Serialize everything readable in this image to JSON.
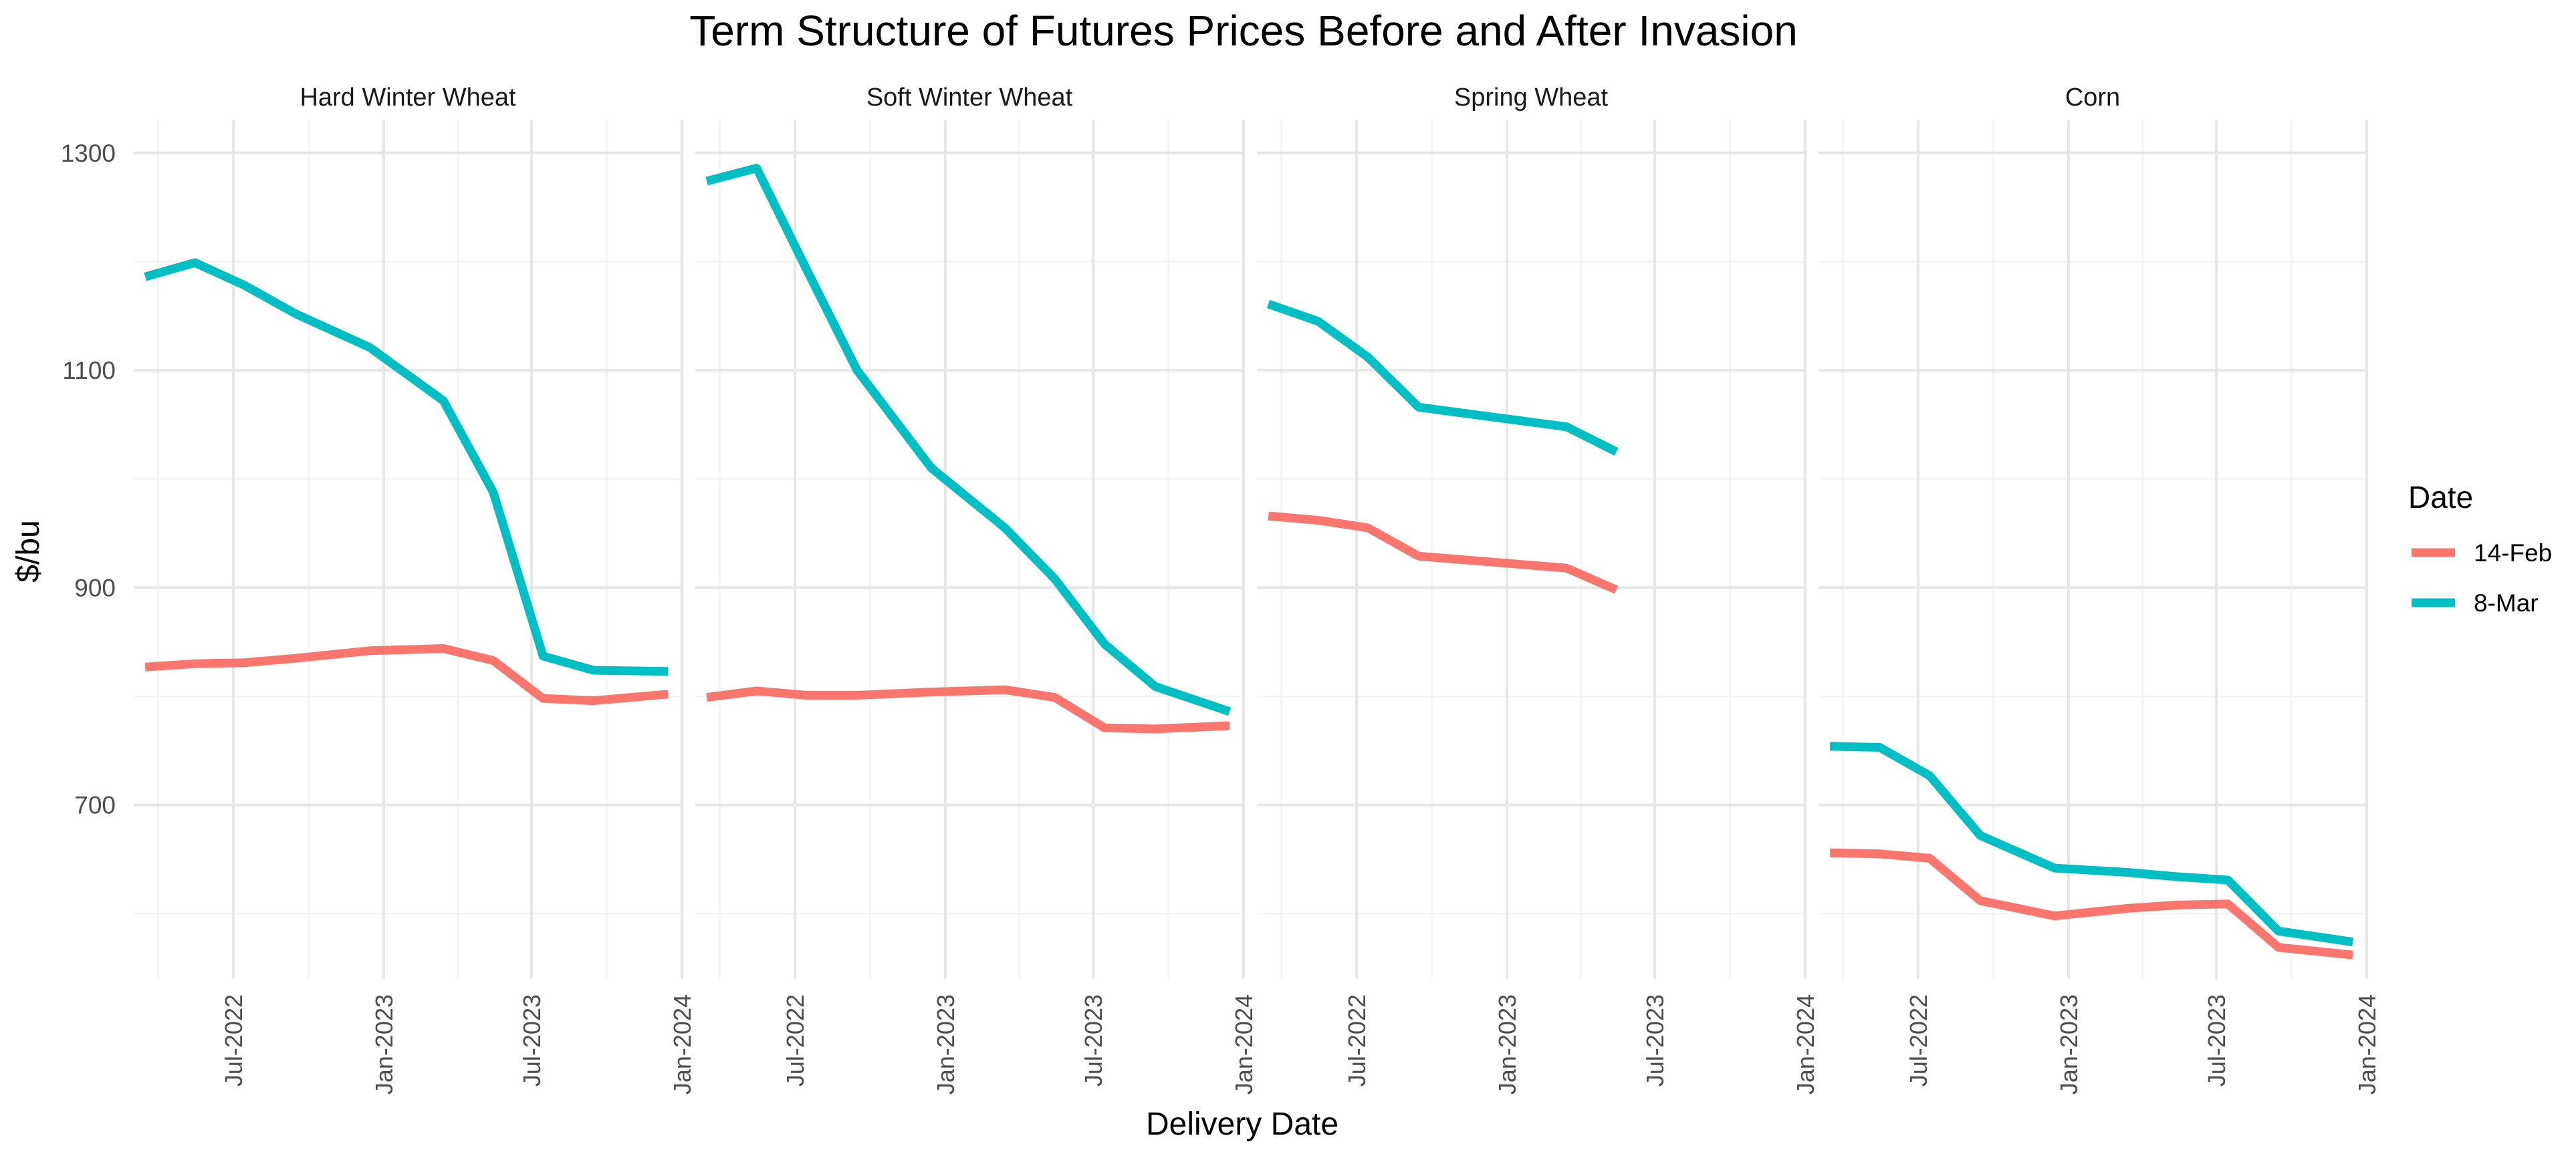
{
  "chart_data": {
    "type": "line",
    "title": "Term Structure of Futures Prices Before and After Invasion",
    "xlabel": "Delivery Date",
    "ylabel": "$/bu",
    "x_type": "date",
    "xlim": [
      "2022-03-01",
      "2024-01-01"
    ],
    "ylim": [
      540,
      1330
    ],
    "x_ticks": [
      {
        "value": "2022-07-01",
        "label": "Jul-2022"
      },
      {
        "value": "2023-01-01",
        "label": "Jan-2023"
      },
      {
        "value": "2023-07-01",
        "label": "Jul-2023"
      },
      {
        "value": "2024-01-01",
        "label": "Jan-2024"
      }
    ],
    "y_ticks": [
      700,
      900,
      1100,
      1300
    ],
    "grid": true,
    "legend": {
      "title": "Date",
      "placement": "right",
      "entries": [
        {
          "name": "14-Feb",
          "color": "#F8766D"
        },
        {
          "name": "8-Mar",
          "color": "#00BFC4"
        }
      ]
    },
    "panels": [
      {
        "name": "Hard Winter Wheat",
        "series": [
          {
            "name": "14-Feb",
            "color": "#F8766D",
            "x": [
              "2022-03-15",
              "2022-05-15",
              "2022-07-15",
              "2022-09-15",
              "2022-12-15",
              "2023-03-15",
              "2023-05-15",
              "2023-07-15",
              "2023-09-15",
              "2023-12-15"
            ],
            "y": [
              827,
              830,
              831,
              835,
              842,
              844,
              833,
              798,
              796,
              802
            ]
          },
          {
            "name": "8-Mar",
            "color": "#00BFC4",
            "x": [
              "2022-03-15",
              "2022-05-15",
              "2022-07-15",
              "2022-09-15",
              "2022-12-15",
              "2023-03-15",
              "2023-05-15",
              "2023-07-15",
              "2023-09-15",
              "2023-12-15"
            ],
            "y": [
              1186,
              1199,
              1178,
              1152,
              1121,
              1072,
              988,
              837,
              824,
              823
            ]
          }
        ]
      },
      {
        "name": "Soft Winter Wheat",
        "series": [
          {
            "name": "14-Feb",
            "color": "#F8766D",
            "x": [
              "2022-03-15",
              "2022-05-15",
              "2022-07-15",
              "2022-09-15",
              "2022-12-15",
              "2023-03-15",
              "2023-05-15",
              "2023-07-15",
              "2023-09-15",
              "2023-12-15"
            ],
            "y": [
              799,
              805,
              801,
              801,
              804,
              806,
              799,
              771,
              770,
              773
            ]
          },
          {
            "name": "8-Mar",
            "color": "#00BFC4",
            "x": [
              "2022-03-15",
              "2022-05-15",
              "2022-07-15",
              "2022-09-15",
              "2022-12-15",
              "2023-03-15",
              "2023-05-15",
              "2023-07-15",
              "2023-09-15",
              "2023-12-15"
            ],
            "y": [
              1274,
              1286,
              1193,
              1100,
              1010,
              955,
              908,
              848,
              809,
              786
            ]
          }
        ]
      },
      {
        "name": "Spring Wheat",
        "series": [
          {
            "name": "14-Feb",
            "color": "#F8766D",
            "x": [
              "2022-03-15",
              "2022-05-15",
              "2022-07-15",
              "2022-09-15",
              "2023-03-15",
              "2023-05-15"
            ],
            "y": [
              966,
              962,
              955,
              929,
              918,
              898
            ]
          },
          {
            "name": "8-Mar",
            "color": "#00BFC4",
            "x": [
              "2022-03-15",
              "2022-05-15",
              "2022-07-15",
              "2022-09-15",
              "2023-03-15",
              "2023-05-15"
            ],
            "y": [
              1161,
              1145,
              1112,
              1066,
              1048,
              1025
            ]
          }
        ]
      },
      {
        "name": "Corn",
        "series": [
          {
            "name": "14-Feb",
            "color": "#F8766D",
            "x": [
              "2022-03-15",
              "2022-05-15",
              "2022-07-15",
              "2022-09-15",
              "2022-12-15",
              "2023-03-15",
              "2023-05-15",
              "2023-07-15",
              "2023-09-15",
              "2023-12-15"
            ],
            "y": [
              656,
              655,
              651,
              612,
              598,
              605,
              608,
              609,
              569,
              562
            ]
          },
          {
            "name": "8-Mar",
            "color": "#00BFC4",
            "x": [
              "2022-03-15",
              "2022-05-15",
              "2022-07-15",
              "2022-09-15",
              "2022-12-15",
              "2023-03-15",
              "2023-05-15",
              "2023-07-15",
              "2023-09-15",
              "2023-12-15"
            ],
            "y": [
              754,
              753,
              727,
              672,
              642,
              638,
              634,
              631,
              584,
              574
            ]
          }
        ]
      }
    ]
  }
}
